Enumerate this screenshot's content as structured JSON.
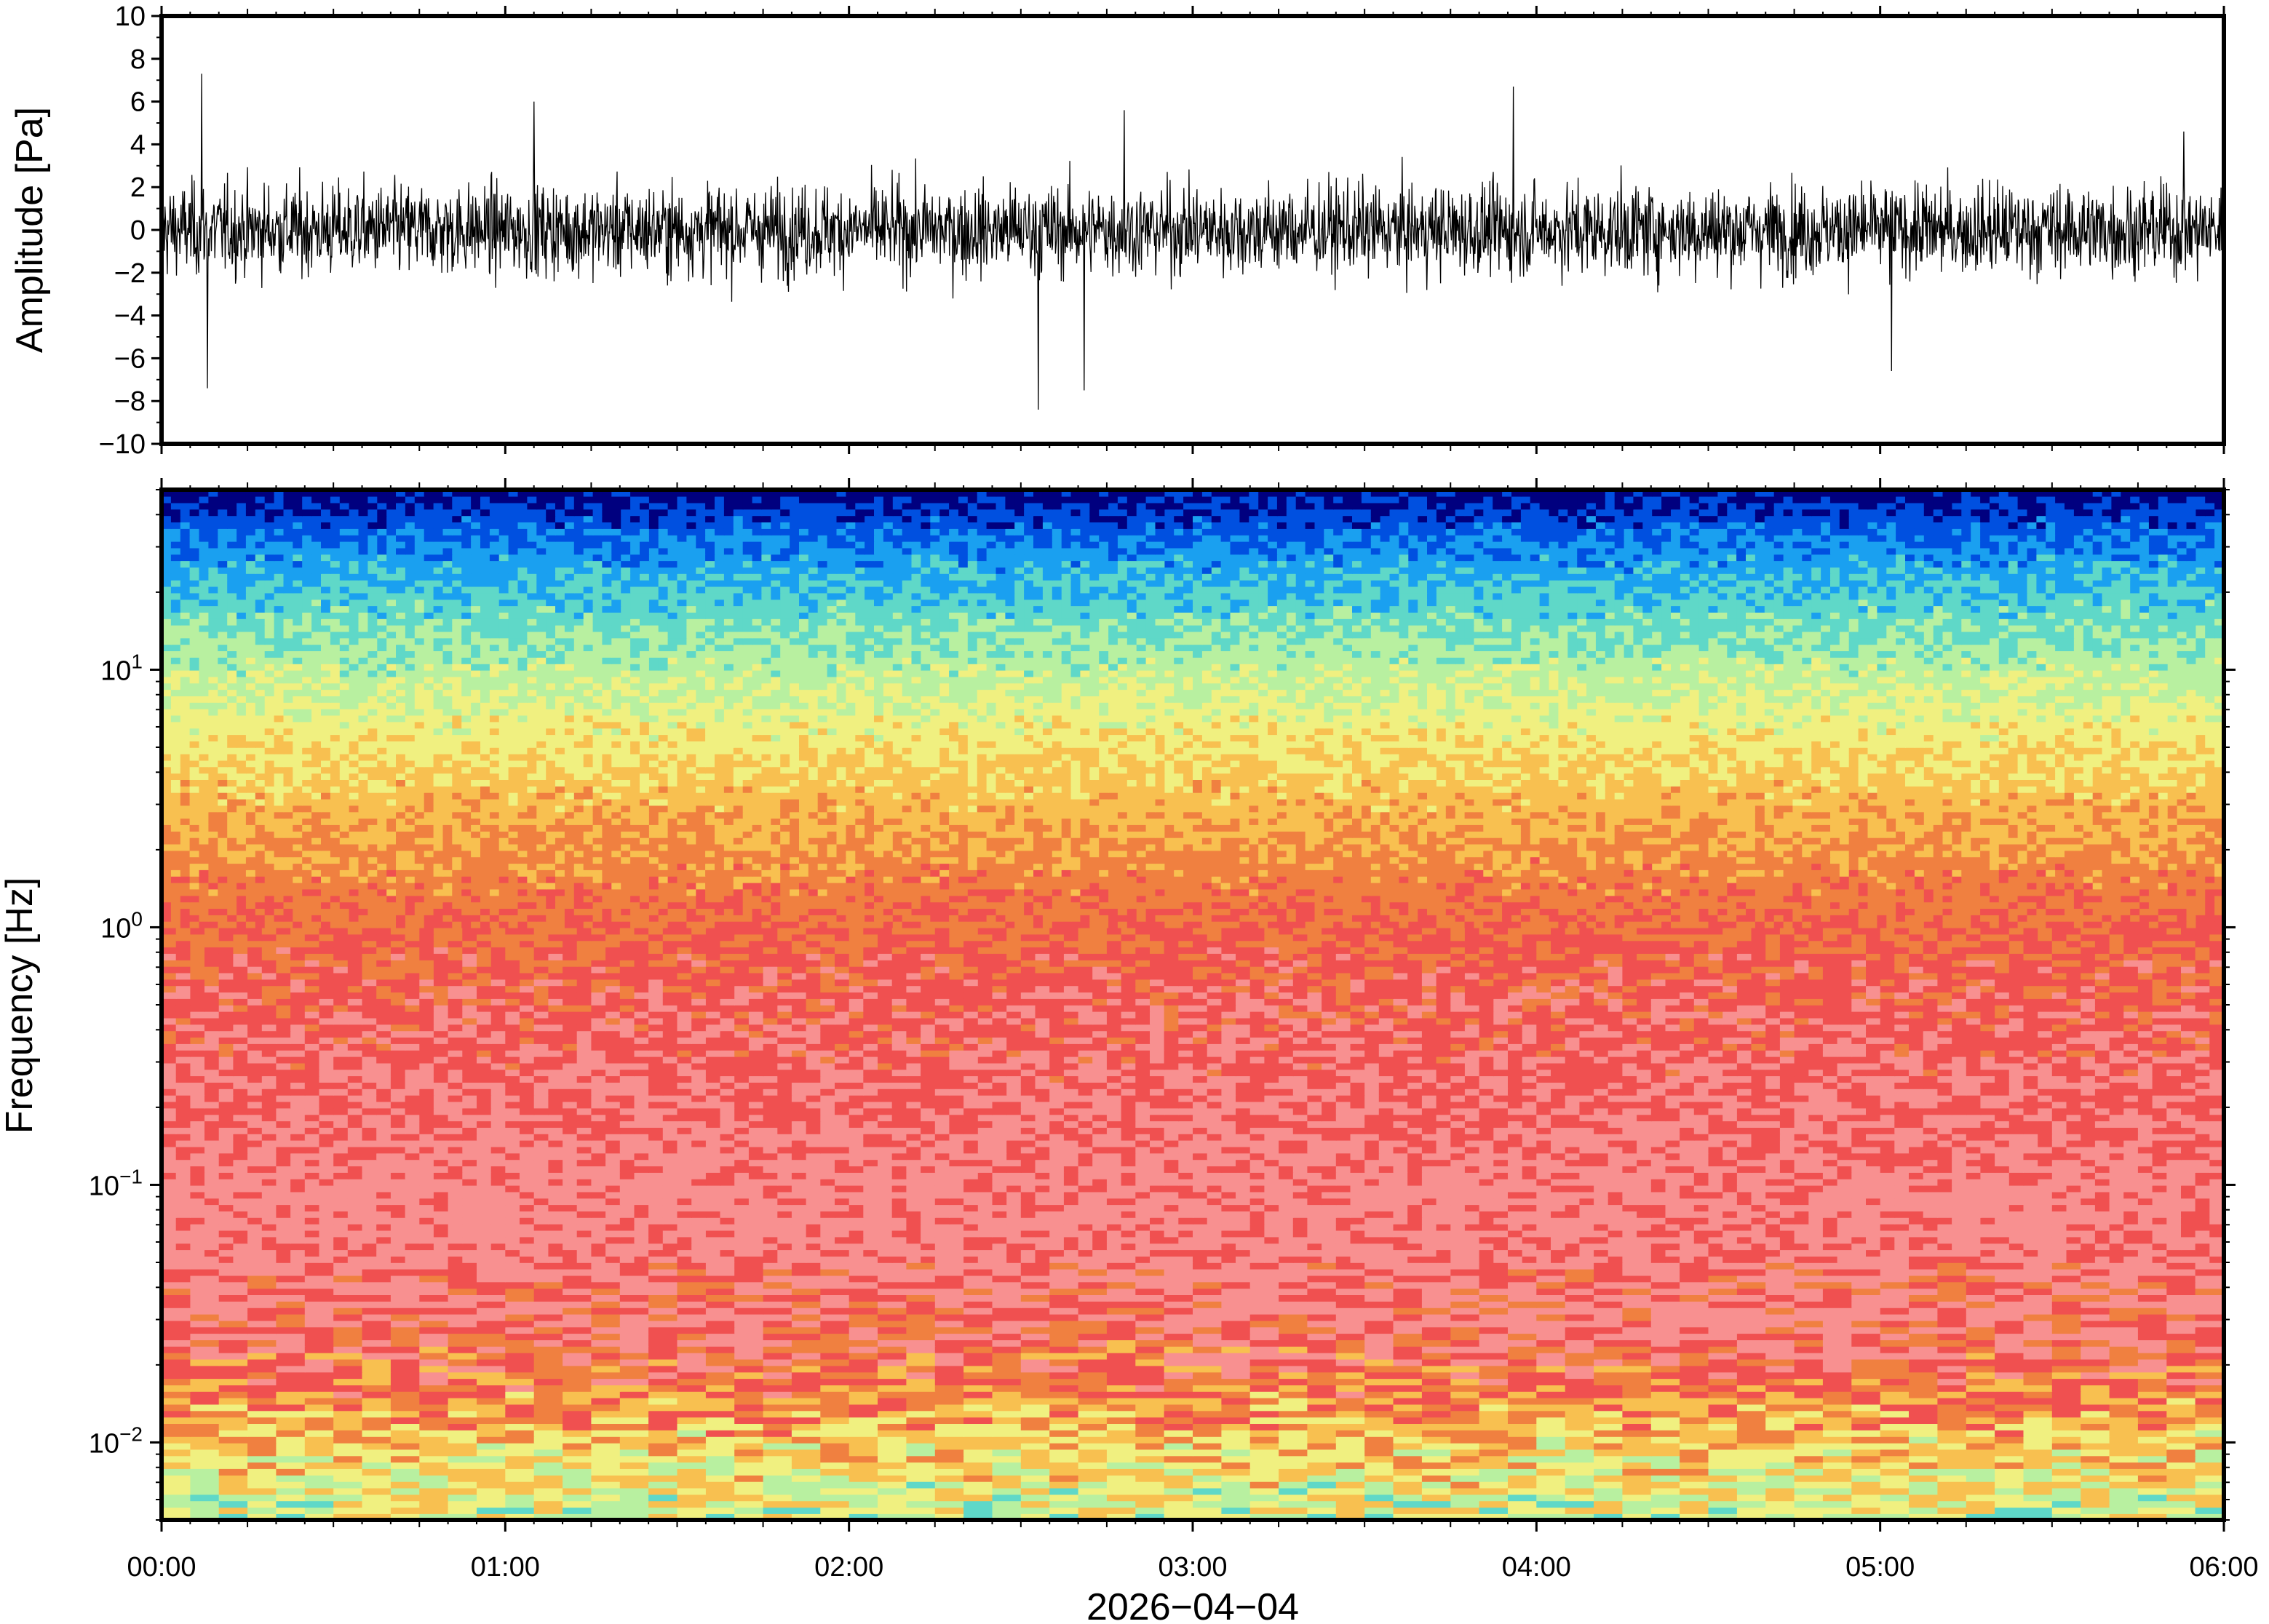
{
  "chart_data": [
    {
      "type": "line",
      "panel": "waveform",
      "ylabel": "Amplitude [Pa]",
      "ylim": [
        -10,
        10
      ],
      "yticks": [
        -10,
        -8,
        -6,
        -4,
        -2,
        0,
        2,
        4,
        6,
        8,
        10
      ],
      "ytick_labels": [
        "−10",
        "−8",
        "−6",
        "−4",
        "−2",
        "0",
        "2",
        "4",
        "6",
        "8",
        "10"
      ],
      "xlim": [
        "00:00",
        "06:00"
      ],
      "typical_envelope": [
        -3,
        3
      ],
      "notable_peaks": [
        {
          "x": "00:07",
          "y": 7.3
        },
        {
          "x": "00:08",
          "y": -7.4
        },
        {
          "x": "01:05",
          "y": 6.0
        },
        {
          "x": "02:33",
          "y": -8.4
        },
        {
          "x": "02:41",
          "y": -7.5
        },
        {
          "x": "02:48",
          "y": 5.6
        },
        {
          "x": "03:56",
          "y": 6.7
        },
        {
          "x": "05:02",
          "y": -6.6
        },
        {
          "x": "05:53",
          "y": 4.6
        }
      ],
      "color": "#000000"
    },
    {
      "type": "heatmap",
      "panel": "spectrogram",
      "ylabel": "Frequency [Hz]",
      "yscale": "log",
      "ylim": [
        0.005,
        50
      ],
      "yticks": [
        {
          "mantissa": "10",
          "exponent": "−2"
        },
        {
          "mantissa": "10",
          "exponent": "−1"
        },
        {
          "mantissa": "10",
          "exponent": "0"
        },
        {
          "mantissa": "10",
          "exponent": "1"
        }
      ],
      "xlabel": "2026−04−04",
      "xticks": [
        "00:00",
        "01:00",
        "02:00",
        "03:00",
        "04:00",
        "05:00",
        "06:00"
      ],
      "colormap": [
        "#00007f",
        "#0050e0",
        "#1aa0f0",
        "#5fd8c8",
        "#b8f0a0",
        "#f0f080",
        "#f8c050",
        "#f08040",
        "#f05050",
        "#f89090"
      ],
      "power_profile_by_frequency": [
        {
          "f": 0.005,
          "level": 0.5
        },
        {
          "f": 0.008,
          "level": 0.58
        },
        {
          "f": 0.012,
          "level": 0.68
        },
        {
          "f": 0.02,
          "level": 0.82
        },
        {
          "f": 0.03,
          "level": 0.9
        },
        {
          "f": 0.05,
          "level": 0.93
        },
        {
          "f": 0.1,
          "level": 0.95
        },
        {
          "f": 0.2,
          "level": 0.9
        },
        {
          "f": 0.5,
          "level": 0.86
        },
        {
          "f": 1,
          "level": 0.8
        },
        {
          "f": 2,
          "level": 0.72
        },
        {
          "f": 4,
          "level": 0.62
        },
        {
          "f": 8,
          "level": 0.5
        },
        {
          "f": 15,
          "level": 0.38
        },
        {
          "f": 30,
          "level": 0.22
        },
        {
          "f": 50,
          "level": 0.05
        }
      ]
    }
  ]
}
